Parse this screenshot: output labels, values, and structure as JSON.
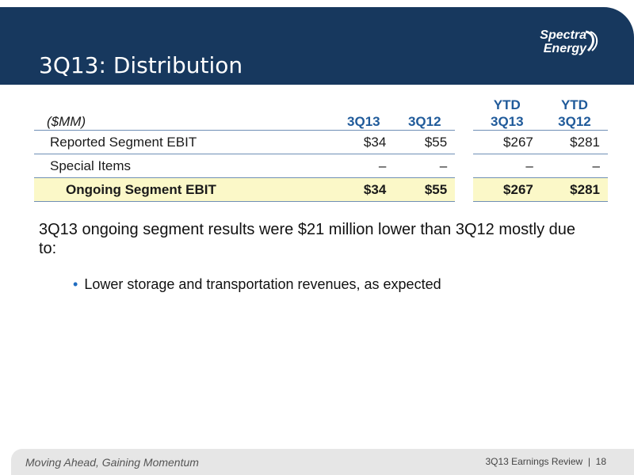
{
  "header": {
    "title": "3Q13: Distribution",
    "logo_line1": "Spectra",
    "logo_line2": "Energy"
  },
  "table": {
    "unit_label": "($MM)",
    "columns": [
      {
        "line1": "",
        "line2": "3Q13"
      },
      {
        "line1": "",
        "line2": "3Q12"
      },
      {
        "line1": "YTD",
        "line2": "3Q13"
      },
      {
        "line1": "YTD",
        "line2": "3Q12"
      }
    ],
    "rows": [
      {
        "label": "Reported Segment EBIT",
        "values": [
          "$34",
          "$55",
          "$267",
          "$281"
        ]
      },
      {
        "label": "Special Items",
        "values": [
          "–",
          "–",
          "–",
          "–"
        ]
      },
      {
        "label": "Ongoing Segment EBIT",
        "values": [
          "$34",
          "$55",
          "$267",
          "$281"
        ]
      }
    ]
  },
  "summary": "3Q13 ongoing segment results were $21 million lower than 3Q12 mostly due to:",
  "bullets": [
    "Lower storage and transportation revenues, as expected"
  ],
  "footer": {
    "tagline": "Moving Ahead, Gaining Momentum",
    "doc": "3Q13 Earnings Review",
    "separator": "|",
    "page": "18"
  },
  "colors": {
    "header_bg": "#17385e",
    "accent_blue": "#1f5a9a",
    "highlight": "#fbf8c8"
  }
}
